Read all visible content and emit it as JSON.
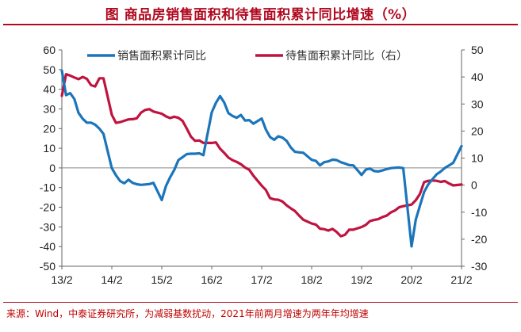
{
  "title": "图  商品房销售面积和待售面积累计同比增速（%）",
  "source": "来源：Wind，中泰证券研究所，为减弱基数扰动，2021年前两月增速为两年年均增速",
  "colors": {
    "sales": "#1b75bb",
    "inventory": "#c0133f",
    "accent": "#b0091f"
  },
  "chart_data": {
    "type": "line",
    "title": "图  商品房销售面积和待售面积累计同比增速（%）",
    "x_tick_labels": [
      "13/2",
      "14/2",
      "15/2",
      "16/2",
      "17/2",
      "18/2",
      "19/2",
      "20/2",
      "21/2"
    ],
    "y_left": {
      "ylim": [
        -50,
        60
      ],
      "ticks": [
        "60",
        "50",
        "40",
        "30",
        "20",
        "10",
        "0",
        "-10",
        "-20",
        "-30",
        "-40",
        "-50"
      ]
    },
    "y_right": {
      "ylim": [
        -30,
        50
      ],
      "ticks": [
        "50",
        "40",
        "30",
        "20",
        "10",
        "0",
        "-10",
        "-20",
        "-30"
      ]
    },
    "legend_placement": "top-center",
    "series": [
      {
        "name": "销售面积累计同比",
        "axis": "left",
        "x": [
          "2013-02",
          "2013-03",
          "2013-04",
          "2013-05",
          "2013-06",
          "2013-07",
          "2013-08",
          "2013-09",
          "2013-10",
          "2013-11",
          "2013-12",
          "2014-02",
          "2014-03",
          "2014-04",
          "2014-05",
          "2014-06",
          "2014-07",
          "2014-08",
          "2014-09",
          "2014-10",
          "2014-11",
          "2014-12",
          "2015-02",
          "2015-03",
          "2015-04",
          "2015-05",
          "2015-06",
          "2015-07",
          "2015-08",
          "2015-09",
          "2015-10",
          "2015-11",
          "2015-12",
          "2016-02",
          "2016-03",
          "2016-04",
          "2016-05",
          "2016-06",
          "2016-07",
          "2016-08",
          "2016-09",
          "2016-10",
          "2016-11",
          "2016-12",
          "2017-02",
          "2017-03",
          "2017-04",
          "2017-05",
          "2017-06",
          "2017-07",
          "2017-08",
          "2017-09",
          "2017-10",
          "2017-11",
          "2017-12",
          "2018-02",
          "2018-03",
          "2018-04",
          "2018-05",
          "2018-06",
          "2018-07",
          "2018-08",
          "2018-09",
          "2018-10",
          "2018-11",
          "2018-12",
          "2019-02",
          "2019-03",
          "2019-04",
          "2019-05",
          "2019-06",
          "2019-07",
          "2019-08",
          "2019-09",
          "2019-10",
          "2019-11",
          "2019-12",
          "2020-02",
          "2020-03",
          "2020-04",
          "2020-05",
          "2020-06",
          "2020-07",
          "2020-08",
          "2020-09",
          "2020-10",
          "2020-11",
          "2020-12",
          "2021-02"
        ],
        "values": [
          49.5,
          37,
          38,
          35,
          28,
          25,
          23,
          23,
          22,
          20,
          17.3,
          -0.1,
          -3.8,
          -6.7,
          -7.8,
          -6,
          -7.6,
          -8.3,
          -8.6,
          -8.4,
          -8.2,
          -7.6,
          -16.3,
          -9.2,
          -4.8,
          -1,
          4,
          5.5,
          7,
          7.2,
          7.2,
          7.4,
          6.5,
          28.2,
          33.1,
          36.5,
          33.2,
          27.9,
          26.4,
          25.5,
          26.9,
          24.1,
          24.3,
          22.5,
          25.1,
          19.5,
          15.7,
          14.3,
          16.1,
          15.4,
          13.7,
          10.3,
          8.2,
          7.9,
          7.7,
          4.1,
          3.6,
          1.3,
          2.9,
          3.3,
          4.2,
          4,
          2.9,
          2.2,
          1.4,
          1.3,
          -3.6,
          -0.9,
          -0.3,
          -1.6,
          -1.8,
          -1.3,
          -0.6,
          -0.1,
          0.1,
          0.2,
          -0.1,
          -39.9,
          -26.3,
          -19.3,
          -12.3,
          -8.4,
          -5.8,
          -3.3,
          -1.8,
          0,
          1.3,
          2.6,
          11.1
        ]
      },
      {
        "name": "待售面积累计同比（右）",
        "axis": "right",
        "x": [
          "2013-02",
          "2013-03",
          "2013-04",
          "2013-05",
          "2013-06",
          "2013-07",
          "2013-08",
          "2013-09",
          "2013-10",
          "2013-11",
          "2013-12",
          "2014-02",
          "2014-03",
          "2014-04",
          "2014-05",
          "2014-06",
          "2014-07",
          "2014-08",
          "2014-09",
          "2014-10",
          "2014-11",
          "2014-12",
          "2015-02",
          "2015-03",
          "2015-04",
          "2015-05",
          "2015-06",
          "2015-07",
          "2015-08",
          "2015-09",
          "2015-10",
          "2015-11",
          "2015-12",
          "2016-02",
          "2016-03",
          "2016-04",
          "2016-05",
          "2016-06",
          "2016-07",
          "2016-08",
          "2016-09",
          "2016-10",
          "2016-11",
          "2016-12",
          "2017-02",
          "2017-03",
          "2017-04",
          "2017-05",
          "2017-06",
          "2017-07",
          "2017-08",
          "2017-09",
          "2017-10",
          "2017-11",
          "2017-12",
          "2018-02",
          "2018-03",
          "2018-04",
          "2018-05",
          "2018-06",
          "2018-07",
          "2018-08",
          "2018-09",
          "2018-10",
          "2018-11",
          "2018-12",
          "2019-02",
          "2019-03",
          "2019-04",
          "2019-05",
          "2019-06",
          "2019-07",
          "2019-08",
          "2019-09",
          "2019-10",
          "2019-11",
          "2019-12",
          "2020-02",
          "2020-03",
          "2020-04",
          "2020-05",
          "2020-06",
          "2020-07",
          "2020-08",
          "2020-09",
          "2020-10",
          "2020-11",
          "2020-12",
          "2021-02"
        ],
        "values": [
          33,
          41,
          40.5,
          39.8,
          39.2,
          40,
          39.3,
          37,
          36.5,
          39.5,
          39.5,
          26,
          23,
          23.3,
          23.8,
          24.3,
          24.4,
          24.7,
          26.8,
          27.8,
          28.1,
          27.2,
          26.4,
          25.4,
          24.8,
          25.3,
          24.9,
          23.7,
          20.9,
          17.9,
          16.4,
          16.5,
          15.6,
          15.6,
          15.8,
          13.5,
          11.9,
          10.2,
          9.2,
          8.6,
          7.7,
          6.5,
          5.7,
          3.5,
          -0.2,
          -1.8,
          -4.8,
          -5.3,
          -5.4,
          -6.1,
          -7.5,
          -8.6,
          -9.6,
          -11.3,
          -12.8,
          -14.2,
          -14.6,
          -16.1,
          -16.3,
          -16.8,
          -16.2,
          -17.3,
          -18.9,
          -18.4,
          -16.5,
          -16.5,
          -15.5,
          -14.7,
          -13.3,
          -12.9,
          -12.6,
          -11.8,
          -11.3,
          -10.1,
          -9.4,
          -8.2,
          -7.8,
          -7.2,
          -5.6,
          -3.3,
          1.1,
          1.6,
          1.7,
          1.6,
          1.2,
          1.5,
          0.6,
          -0.1,
          0.2
        ]
      }
    ]
  }
}
